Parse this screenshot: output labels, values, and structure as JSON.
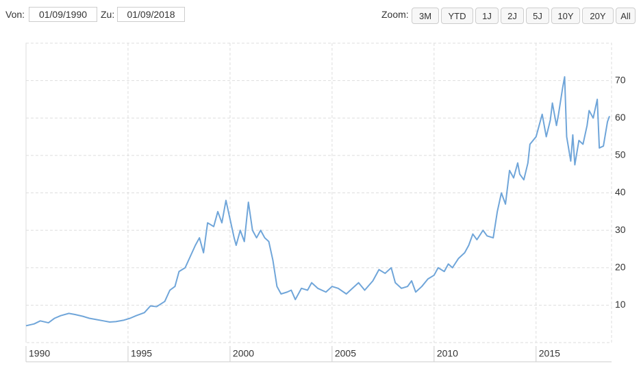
{
  "controls": {
    "from_label": "Von:",
    "from_value": "01/09/1990",
    "to_label": "Zu:",
    "to_value": "01/09/2018",
    "zoom_label": "Zoom:",
    "zoom_buttons": [
      "3M",
      "YTD",
      "1J",
      "2J",
      "5J",
      "10Y",
      "20Y",
      "All"
    ]
  },
  "chart_data": {
    "type": "line",
    "color": "#6fa5d9",
    "x": [
      1990.0,
      1990.4,
      1990.7,
      1991.1,
      1991.4,
      1991.7,
      1992.1,
      1992.4,
      1992.8,
      1993.1,
      1993.4,
      1993.8,
      1994.1,
      1994.4,
      1994.8,
      1995.1,
      1995.4,
      1995.8,
      1996.1,
      1996.4,
      1996.8,
      1997.05,
      1997.3,
      1997.5,
      1997.8,
      1998.05,
      1998.3,
      1998.5,
      1998.7,
      1998.9,
      1999.2,
      1999.4,
      1999.6,
      1999.8,
      2000.0,
      2000.2,
      2000.3,
      2000.5,
      2000.7,
      2000.9,
      2001.1,
      2001.3,
      2001.5,
      2001.7,
      2001.9,
      2002.1,
      2002.3,
      2002.5,
      2002.8,
      2003.0,
      2003.2,
      2003.5,
      2003.8,
      2004.0,
      2004.3,
      2004.7,
      2005.0,
      2005.3,
      2005.7,
      2006.0,
      2006.3,
      2006.6,
      2007.0,
      2007.3,
      2007.6,
      2007.9,
      2008.1,
      2008.4,
      2008.7,
      2008.9,
      2009.1,
      2009.4,
      2009.7,
      2010.0,
      2010.2,
      2010.5,
      2010.7,
      2010.9,
      2011.2,
      2011.5,
      2011.7,
      2011.9,
      2012.1,
      2012.4,
      2012.6,
      2012.9,
      2013.1,
      2013.3,
      2013.5,
      2013.7,
      2013.9,
      2014.1,
      2014.2,
      2014.4,
      2014.6,
      2014.7,
      2015.0,
      2015.2,
      2015.3,
      2015.5,
      2015.7,
      2015.8,
      2016.0,
      2016.1,
      2016.3,
      2016.4,
      2016.5,
      2016.7,
      2016.8,
      2016.9,
      2017.1,
      2017.3,
      2017.5,
      2017.6,
      2017.8,
      2018.0,
      2018.1,
      2018.3,
      2018.5,
      2018.6
    ],
    "values": [
      4.5,
      5,
      5.8,
      5.3,
      6.5,
      7.2,
      7.8,
      7.5,
      7,
      6.5,
      6.2,
      5.8,
      5.5,
      5.6,
      6,
      6.5,
      7.2,
      8,
      9.8,
      9.6,
      11,
      14,
      15,
      19,
      20,
      23,
      26,
      28,
      24,
      32,
      31,
      35,
      32,
      38,
      33,
      28,
      26,
      30,
      27,
      37.5,
      30,
      28,
      30,
      28,
      27,
      22,
      15,
      13,
      13.5,
      14,
      11.5,
      14.5,
      14,
      16,
      14.5,
      13.5,
      15,
      14.5,
      13,
      14.5,
      16,
      14,
      16.5,
      19.5,
      18.5,
      20,
      16,
      14.5,
      15,
      16.5,
      13.5,
      15,
      17,
      18,
      20,
      19,
      21,
      20,
      22.5,
      24,
      26,
      29,
      27.5,
      30,
      28.5,
      28,
      35,
      40,
      37,
      46,
      44,
      48,
      45,
      43.5,
      48,
      53,
      55,
      59,
      61,
      55,
      59.5,
      64,
      58,
      61,
      68,
      71,
      55,
      48.5,
      55.5,
      47.5,
      54,
      53,
      58,
      62,
      60,
      65,
      52,
      52.5,
      59,
      60.5
    ],
    "xlim": [
      1990,
      2018.7
    ],
    "xticks": [
      1990,
      1995,
      2000,
      2005,
      2010,
      2015
    ],
    "ylim": [
      0,
      80
    ],
    "yticks": [
      10,
      20,
      30,
      40,
      50,
      60,
      70
    ],
    "grid": true
  }
}
